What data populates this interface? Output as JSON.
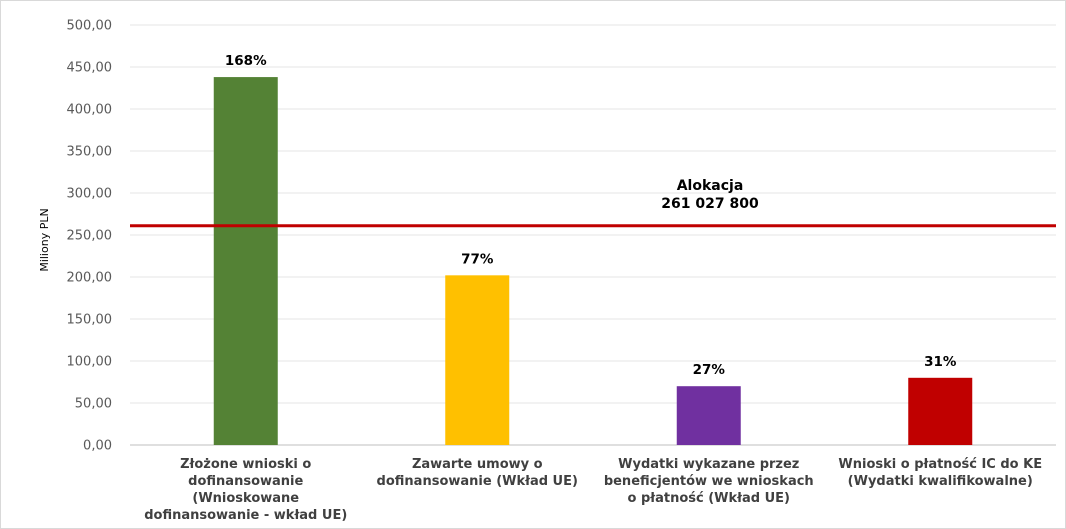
{
  "chart_data": {
    "type": "bar",
    "title": "",
    "xlabel": "",
    "ylabel": "Miliony PLN",
    "ylim": [
      0,
      500
    ],
    "yticks": [
      "0,00",
      "50,00",
      "100,00",
      "150,00",
      "200,00",
      "250,00",
      "300,00",
      "350,00",
      "400,00",
      "450,00",
      "500,00"
    ],
    "grid": true,
    "categories": [
      [
        "Złożone wnioski o",
        "dofinansowanie",
        "(Wnioskowane",
        "dofinansowanie - wkład UE)"
      ],
      [
        "Zawarte umowy o",
        "dofinansowanie (Wkład UE)"
      ],
      [
        "Wydatki wykazane przez",
        "beneficjentów we wnioskach",
        "o płatność (Wkład UE)"
      ],
      [
        "Wnioski o płatność IC do KE",
        "(Wydatki kwalifikowalne)"
      ]
    ],
    "values": [
      438,
      202,
      70,
      80
    ],
    "data_labels": [
      "168%",
      "77%",
      "27%",
      "31%"
    ],
    "colors": [
      "#548235",
      "#FFC000",
      "#7030A0",
      "#C00000"
    ],
    "reference_line": {
      "value": 261.0278,
      "label_lines": [
        "Alokacja",
        "261 027 800"
      ],
      "color": "#C00000"
    }
  }
}
